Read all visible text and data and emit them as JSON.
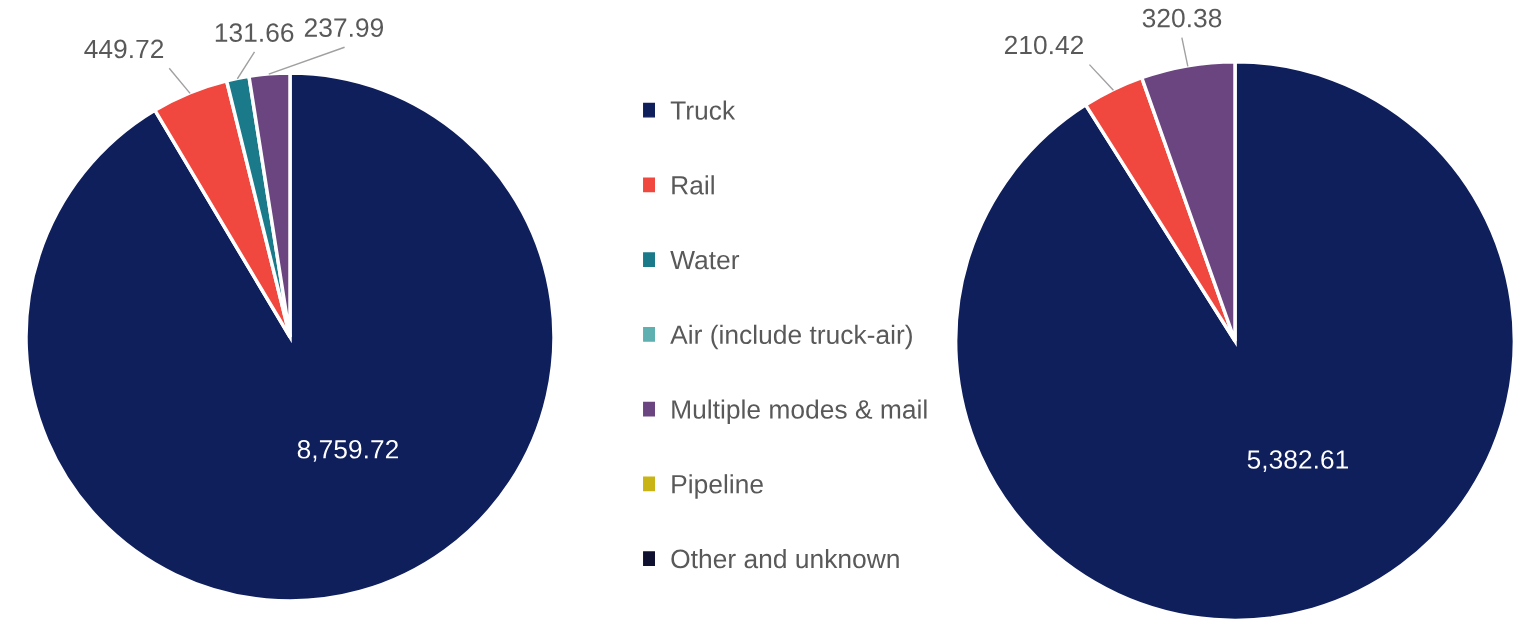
{
  "chart_data": [
    {
      "type": "pie",
      "categories": [
        "Truck",
        "Rail",
        "Water",
        "Air (include truck-air)",
        "Multiple modes & mail",
        "Pipeline",
        "Other and unknown"
      ],
      "values": [
        8759.72,
        449.72,
        131.66,
        null,
        237.99,
        null,
        null
      ],
      "value_labels": [
        "8,759.72",
        "449.72",
        "131.66",
        null,
        "237.99",
        null,
        null
      ],
      "colors": [
        "#0f1f5c",
        "#f0483e",
        "#1a7a8a",
        "#5fb0b0",
        "#6a4580",
        "#c8b414",
        "#101030"
      ],
      "legend": "right"
    },
    {
      "type": "pie",
      "categories": [
        null,
        null,
        null,
        null,
        null,
        null,
        null
      ],
      "values": [
        5382.61,
        210.42,
        null,
        null,
        320.38,
        null,
        null
      ],
      "value_labels": [
        "5,382.61",
        "210.42",
        null,
        null,
        "320.38",
        null,
        null
      ],
      "colors": [
        "#0f1f5c",
        "#f0483e",
        "#1a7a8a",
        "#5fb0b0",
        "#6a4580",
        "#c8b414",
        "#101030"
      ]
    }
  ]
}
